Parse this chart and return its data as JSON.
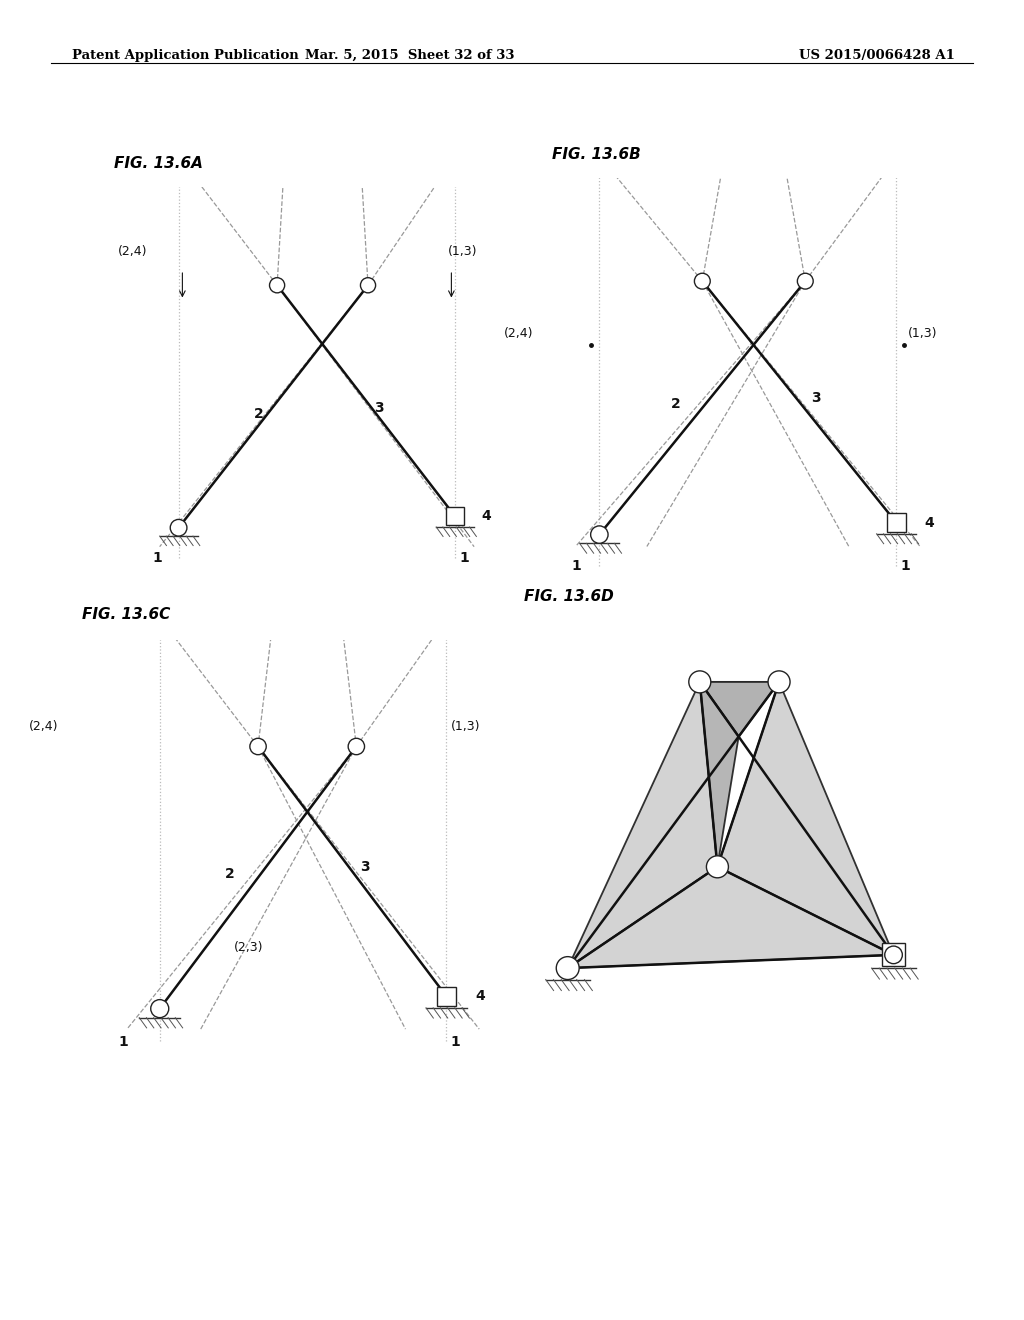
{
  "header_left": "Patent Application Publication",
  "header_mid": "Mar. 5, 2015  Sheet 32 of 33",
  "header_right": "US 2015/0066428 A1",
  "fig_titles": [
    "FIG. 13.6A",
    "FIG. 13.6B",
    "FIG. 13.6C",
    "FIG. 13.6D"
  ],
  "bg_color": "#ffffff",
  "line_color_solid": "#111111",
  "line_color_dashed": "#999999",
  "fill_color_dark": "#aaaaaa",
  "fill_color_light": "#cccccc"
}
